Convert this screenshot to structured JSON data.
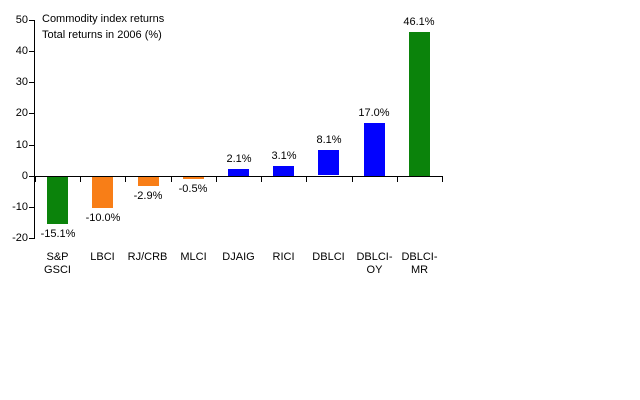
{
  "title": {
    "line1": "Commodity index returns",
    "line2": "Total returns in 2006 (%)"
  },
  "colors": {
    "green": "#0B830B",
    "orange": "#F87E17",
    "blue": "#0202FE",
    "axis": "#000000",
    "background": "#FFFFFF",
    "text": "#000000"
  },
  "chart_data": {
    "type": "bar",
    "title": "Commodity index returns",
    "subtitle": "Total returns in 2006 (%)",
    "categories": [
      "S&P GSCI",
      "LBCI",
      "RJ/CRB",
      "MLCI",
      "DJAIG",
      "RICI",
      "DBLCI",
      "DBLCI-OY",
      "DBLCI-MR"
    ],
    "category_label_lines": [
      [
        "S&P",
        "GSCI"
      ],
      [
        "LBCI"
      ],
      [
        "RJ/CRB"
      ],
      [
        "MLCI"
      ],
      [
        "DJAIG"
      ],
      [
        "RICI"
      ],
      [
        "DBLCI"
      ],
      [
        "DBLCI-",
        "OY"
      ],
      [
        "DBLCI-",
        "MR"
      ]
    ],
    "values": [
      -15.1,
      -10.0,
      -2.9,
      -0.5,
      2.1,
      3.1,
      8.1,
      17.0,
      46.1
    ],
    "value_labels": [
      "-15.1%",
      "-10.0%",
      "-2.9%",
      "-0.5%",
      "2.1%",
      "3.1%",
      "8.1%",
      "17.0%",
      "46.1%"
    ],
    "bar_colors": [
      "#0B830B",
      "#F87E17",
      "#F87E17",
      "#F87E17",
      "#0202FE",
      "#0202FE",
      "#0202FE",
      "#0202FE",
      "#0B830B"
    ],
    "xlabel": "",
    "ylabel": "",
    "ylim": [
      -20,
      50
    ],
    "ytick_step": 10,
    "yticks": [
      50,
      40,
      30,
      20,
      10,
      0,
      -10,
      -20
    ],
    "ytick_labels": [
      "50",
      "40",
      "30",
      "20",
      "10",
      "0",
      "-10",
      "-20"
    ],
    "grid": false,
    "legend": "none"
  }
}
